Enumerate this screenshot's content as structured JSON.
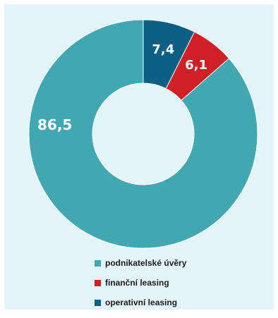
{
  "chart_data": {
    "type": "pie",
    "subtype": "donut",
    "categories": [
      "podnikatelské úvěry",
      "finanční leasing",
      "operativní leasing"
    ],
    "values": [
      86.5,
      6.1,
      7.4
    ],
    "labels": [
      "86,5",
      "6,1",
      "7,4"
    ],
    "colors": [
      "#41a7b0",
      "#d02027",
      "#0b5f86"
    ],
    "legend_position": "bottom"
  }
}
